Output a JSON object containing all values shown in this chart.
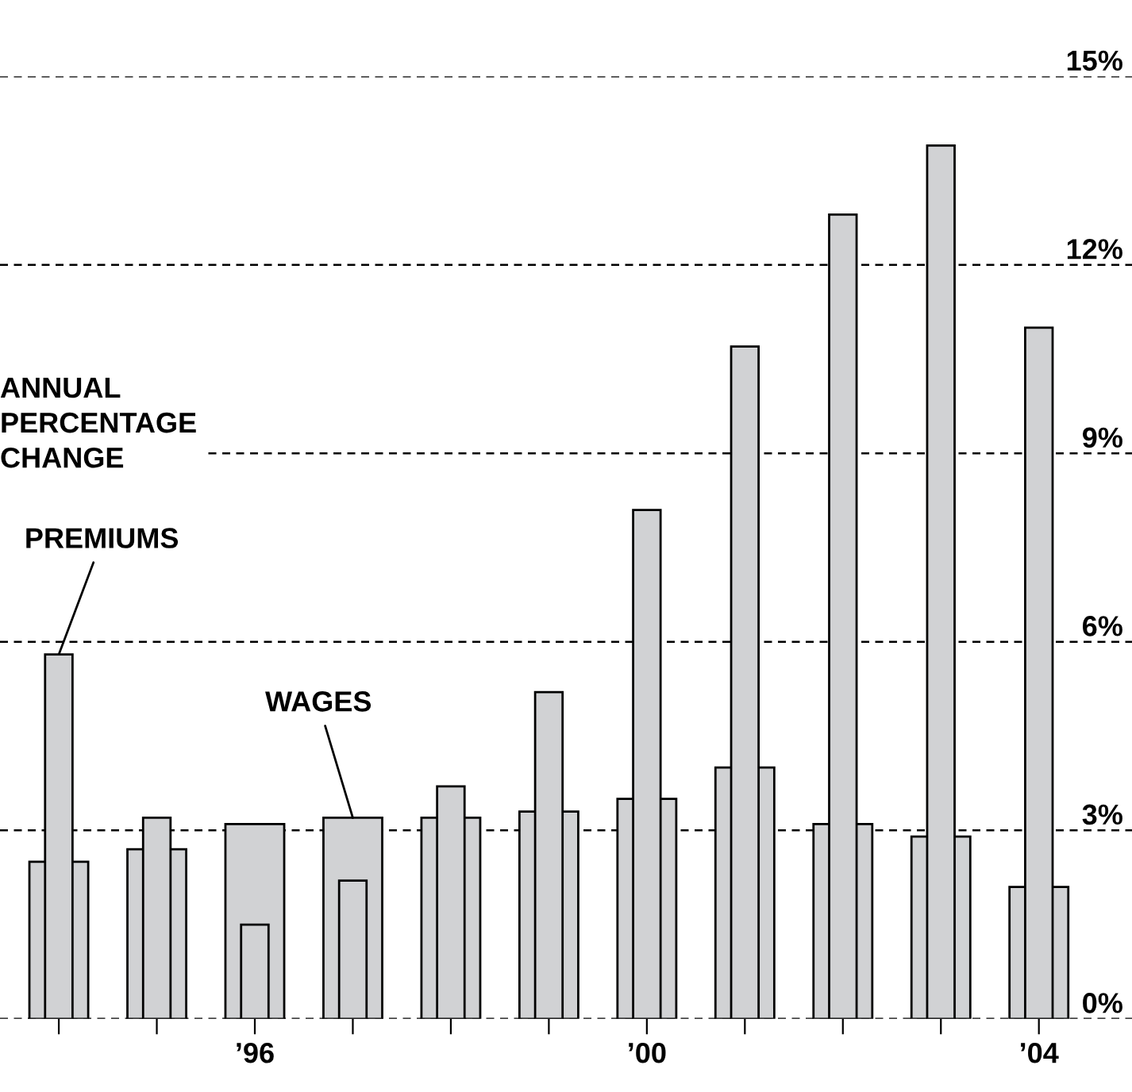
{
  "chart_data": {
    "type": "bar",
    "ylabel": "ANNUAL\nPERCENTAGE\nCHANGE",
    "categories": [
      null,
      null,
      "’96",
      null,
      null,
      null,
      "’00",
      null,
      null,
      null,
      "’04"
    ],
    "series": [
      {
        "name": "WAGES",
        "color": "#d1d2d4",
        "values": [
          2.5,
          2.7,
          3.1,
          3.2,
          3.2,
          3.3,
          3.5,
          4.0,
          3.1,
          2.9,
          2.1
        ]
      },
      {
        "name": "PREMIUMS",
        "color": "#d1d2d4",
        "values": [
          5.8,
          3.2,
          1.5,
          2.2,
          3.7,
          5.2,
          8.1,
          10.7,
          12.8,
          13.9,
          11.0
        ]
      }
    ],
    "ylim": [
      0,
      15
    ],
    "yticks": [
      {
        "value": 0,
        "label": "0%"
      },
      {
        "value": 3,
        "label": "3%"
      },
      {
        "value": 6,
        "label": "6%"
      },
      {
        "value": 9,
        "label": "9%"
      },
      {
        "value": 12,
        "label": "12%"
      },
      {
        "value": 15,
        "label": "15%"
      }
    ],
    "grid": "y",
    "legend": false
  }
}
